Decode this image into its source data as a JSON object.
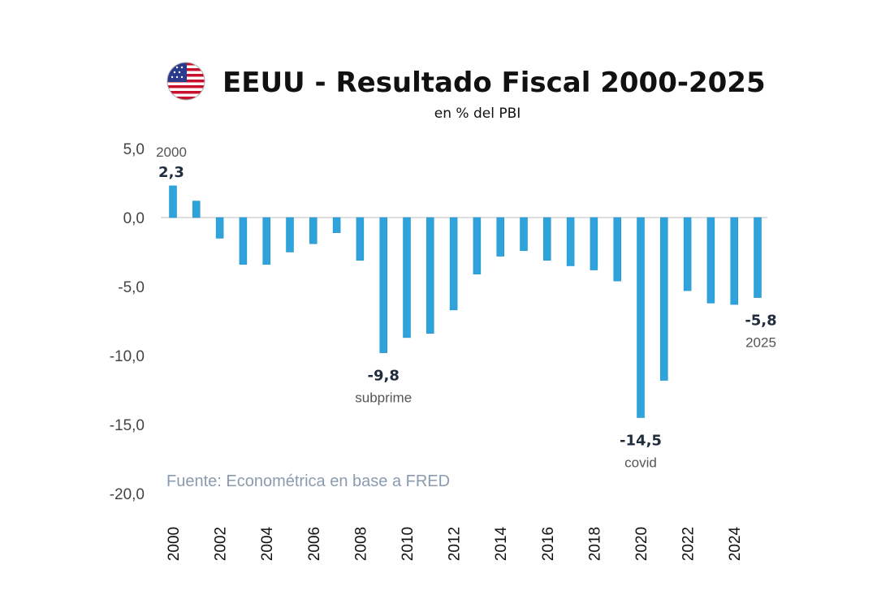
{
  "header": {
    "flag_icon": "us-flag-icon",
    "title": "EEUU - Resultado Fiscal 2000-2025",
    "subtitle": "en % del PBI"
  },
  "source": "Fuente: Econométrica en base a FRED",
  "colors": {
    "bar": "#2ea3dc",
    "bar_edge": "#1c8cc6",
    "zero_line": "#d4d4d4",
    "source": "#8a9bb0"
  },
  "chart_data": {
    "type": "bar",
    "categories": [
      "2000",
      "2001",
      "2002",
      "2003",
      "2004",
      "2005",
      "2006",
      "2007",
      "2008",
      "2009",
      "2010",
      "2011",
      "2012",
      "2013",
      "2014",
      "2015",
      "2016",
      "2017",
      "2018",
      "2019",
      "2020",
      "2021",
      "2022",
      "2023",
      "2024",
      "2025"
    ],
    "values": [
      2.3,
      1.2,
      -1.5,
      -3.4,
      -3.4,
      -2.5,
      -1.9,
      -1.1,
      -3.1,
      -9.8,
      -8.7,
      -8.4,
      -6.7,
      -4.1,
      -2.8,
      -2.4,
      -3.1,
      -3.5,
      -3.8,
      -4.6,
      -14.5,
      -11.8,
      -5.3,
      -6.2,
      -6.3,
      -5.8
    ],
    "ylim": [
      -20,
      5
    ],
    "yticks": [
      "5,0",
      "0,0",
      "-5,0",
      "-10,0",
      "-15,0",
      "-20,0"
    ],
    "ytick_values": [
      5,
      0,
      -5,
      -10,
      -15,
      -20
    ],
    "xtick_labels": [
      "2000",
      "2002",
      "2004",
      "2006",
      "2008",
      "2010",
      "2012",
      "2014",
      "2016",
      "2018",
      "2020",
      "2022",
      "2024"
    ],
    "grid": false,
    "annotations": [
      {
        "category": "2000",
        "value_label": "2,3",
        "label": "2000",
        "label_position": "above"
      },
      {
        "category": "2009",
        "value_label": "-9,8",
        "label": "subprime",
        "label_position": "below"
      },
      {
        "category": "2020",
        "value_label": "-14,5",
        "label": "covid",
        "label_position": "below"
      },
      {
        "category": "2025",
        "value_label": "-5,8",
        "label": "2025",
        "label_position": "below"
      }
    ]
  }
}
